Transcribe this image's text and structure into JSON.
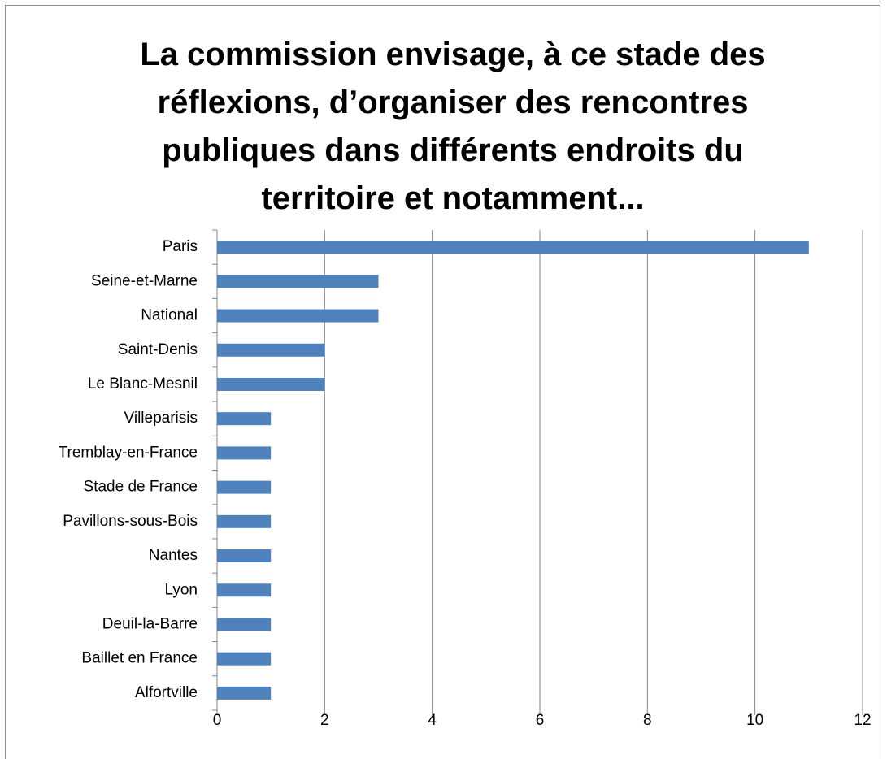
{
  "chart_data": {
    "type": "bar",
    "orientation": "horizontal",
    "title": "La commission envisage, à ce stade des réflexions, d’organiser des rencontres publiques dans différents endroits du territoire et notamment...",
    "categories": [
      "Paris",
      "Seine-et-Marne",
      "National",
      "Saint-Denis",
      "Le Blanc-Mesnil",
      "Villeparisis",
      "Tremblay-en-France",
      "Stade de France",
      "Pavillons-sous-Bois",
      "Nantes",
      "Lyon",
      "Deuil-la-Barre",
      "Baillet en France",
      "Alfortville"
    ],
    "values": [
      11,
      3,
      3,
      2,
      2,
      1,
      1,
      1,
      1,
      1,
      1,
      1,
      1,
      1
    ],
    "color": "#4f81bd",
    "xlim": [
      0,
      12
    ],
    "xticks": [
      0,
      2,
      4,
      6,
      8,
      10,
      12
    ],
    "grid": true
  }
}
